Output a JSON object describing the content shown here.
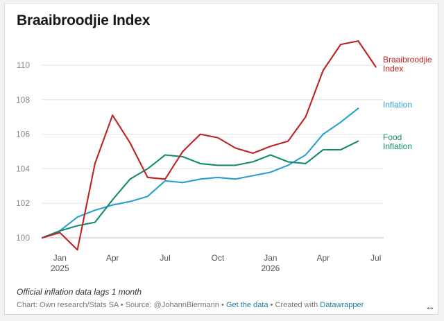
{
  "title": "Braaibroodjie Index",
  "note": "Official inflation data lags 1 month",
  "footer": {
    "prefix": "Chart: Own research/Stats SA • Source: @JohannBiermann • ",
    "get_data": "Get the data",
    "middle": " • Created with ",
    "datawrapper": "Datawrapper"
  },
  "expand_icon": "↔",
  "colors": {
    "braai": "#be2124",
    "inflation": "#2a9fce",
    "food": "#138c6e",
    "grid": "#e3e3e3",
    "tick": "#8a8a8a",
    "link": "#1d81a2"
  },
  "chart_data": {
    "type": "line",
    "title": "Braaibroodjie Index",
    "ylim": [
      99.5,
      111.5
    ],
    "y_ticks": [
      100,
      102,
      104,
      106,
      108,
      110
    ],
    "grid": true,
    "legend": "direct labels at right end of lines",
    "x_ticks": [
      {
        "month": 1,
        "label": "Jan",
        "sub": "2025"
      },
      {
        "month": 4,
        "label": "Apr",
        "sub": ""
      },
      {
        "month": 7,
        "label": "Jul",
        "sub": ""
      },
      {
        "month": 10,
        "label": "Oct",
        "sub": ""
      },
      {
        "month": 13,
        "label": "Jan",
        "sub": "2026"
      },
      {
        "month": 16,
        "label": "Apr",
        "sub": ""
      },
      {
        "month": 19,
        "label": "Jul",
        "sub": ""
      }
    ],
    "series": [
      {
        "key": "braai",
        "label_lines": [
          "Braaibroodjie",
          "Index"
        ],
        "x": [
          0,
          1,
          2,
          3,
          4,
          5,
          6,
          7,
          8,
          9,
          10,
          11,
          12,
          13,
          14,
          15,
          16,
          17,
          18,
          19
        ],
        "values": [
          100,
          100.3,
          99.3,
          104.3,
          107.1,
          105.5,
          103.5,
          103.4,
          105.0,
          106.0,
          105.8,
          105.2,
          104.9,
          105.3,
          105.6,
          107.0,
          109.7,
          111.2,
          111.4,
          109.9
        ]
      },
      {
        "key": "inflation",
        "label_lines": [
          "Inflation"
        ],
        "x": [
          0,
          1,
          2,
          3,
          4,
          5,
          6,
          7,
          8,
          9,
          10,
          11,
          12,
          13,
          14,
          15,
          16,
          17,
          18
        ],
        "values": [
          100,
          100.4,
          101.2,
          101.6,
          101.9,
          102.1,
          102.4,
          103.3,
          103.2,
          103.4,
          103.5,
          103.4,
          103.6,
          103.8,
          104.2,
          104.8,
          106.0,
          106.7,
          107.5
        ]
      },
      {
        "key": "food",
        "label_lines": [
          "Food",
          "Inflation"
        ],
        "x": [
          0,
          1,
          2,
          3,
          4,
          5,
          6,
          7,
          8,
          9,
          10,
          11,
          12,
          13,
          14,
          15,
          16,
          17,
          18
        ],
        "values": [
          100,
          100.4,
          100.7,
          100.9,
          102.2,
          103.4,
          104.0,
          104.8,
          104.7,
          104.3,
          104.2,
          104.2,
          104.4,
          104.8,
          104.4,
          104.3,
          105.1,
          105.1,
          105.6
        ]
      }
    ]
  }
}
